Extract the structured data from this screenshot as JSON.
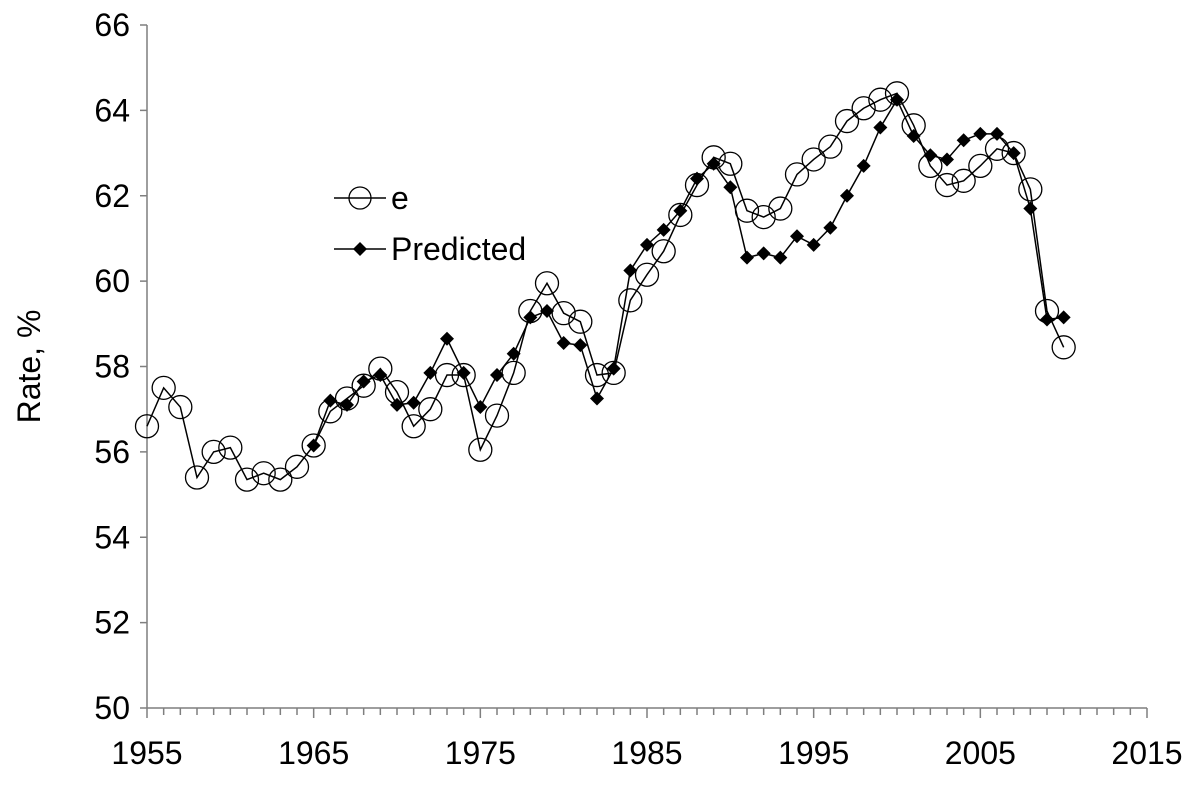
{
  "chart_data": {
    "type": "line",
    "title": "",
    "xlabel": "",
    "ylabel": "Rate, %",
    "xlim": [
      1955,
      2015
    ],
    "ylim": [
      50,
      66
    ],
    "x_ticks": [
      1955,
      1965,
      1975,
      1985,
      1995,
      2005,
      2015
    ],
    "y_ticks": [
      50,
      52,
      54,
      56,
      58,
      60,
      62,
      64,
      66
    ],
    "grid": false,
    "legend": {
      "position": "center-left"
    },
    "series": [
      {
        "name": "e",
        "marker": "open-circle",
        "x": [
          1955,
          1956,
          1957,
          1958,
          1959,
          1960,
          1961,
          1962,
          1963,
          1964,
          1965,
          1966,
          1967,
          1968,
          1969,
          1970,
          1971,
          1972,
          1973,
          1974,
          1975,
          1976,
          1977,
          1978,
          1979,
          1980,
          1981,
          1982,
          1983,
          1984,
          1985,
          1986,
          1987,
          1988,
          1989,
          1990,
          1991,
          1992,
          1993,
          1994,
          1995,
          1996,
          1997,
          1998,
          1999,
          2000,
          2001,
          2002,
          2003,
          2004,
          2005,
          2006,
          2007,
          2008,
          2009,
          2010
        ],
        "y": [
          56.6,
          57.5,
          57.05,
          55.4,
          56.0,
          56.1,
          55.35,
          55.5,
          55.35,
          55.65,
          56.15,
          56.95,
          57.25,
          57.55,
          57.95,
          57.4,
          56.6,
          57.0,
          57.8,
          57.8,
          56.05,
          56.85,
          57.85,
          59.3,
          59.95,
          59.25,
          59.05,
          57.8,
          57.85,
          59.55,
          60.15,
          60.7,
          61.55,
          62.25,
          62.9,
          62.75,
          61.65,
          61.5,
          61.7,
          62.5,
          62.85,
          63.15,
          63.75,
          64.05,
          64.25,
          64.4,
          63.65,
          62.7,
          62.25,
          62.35,
          62.7,
          63.1,
          63.0,
          62.15,
          59.3,
          58.45
        ]
      },
      {
        "name": "Predicted",
        "marker": "filled-diamond",
        "x": [
          1965,
          1966,
          1967,
          1968,
          1969,
          1970,
          1971,
          1972,
          1973,
          1974,
          1975,
          1976,
          1977,
          1978,
          1979,
          1980,
          1981,
          1982,
          1983,
          1984,
          1985,
          1986,
          1987,
          1988,
          1989,
          1990,
          1991,
          1992,
          1993,
          1994,
          1995,
          1996,
          1997,
          1998,
          1999,
          2000,
          2001,
          2002,
          2003,
          2004,
          2005,
          2006,
          2007,
          2008,
          2009,
          2010
        ],
        "y": [
          56.15,
          57.2,
          57.1,
          57.65,
          57.8,
          57.1,
          57.15,
          57.85,
          58.65,
          57.85,
          57.05,
          57.8,
          58.3,
          59.15,
          59.3,
          58.55,
          58.5,
          57.25,
          57.95,
          60.25,
          60.85,
          61.2,
          61.65,
          62.4,
          62.75,
          62.2,
          60.55,
          60.65,
          60.55,
          61.05,
          60.85,
          61.25,
          62.0,
          62.7,
          63.6,
          64.25,
          63.4,
          62.95,
          62.85,
          63.3,
          63.45,
          63.45,
          63.0,
          61.7,
          59.1,
          59.15
        ]
      }
    ]
  }
}
